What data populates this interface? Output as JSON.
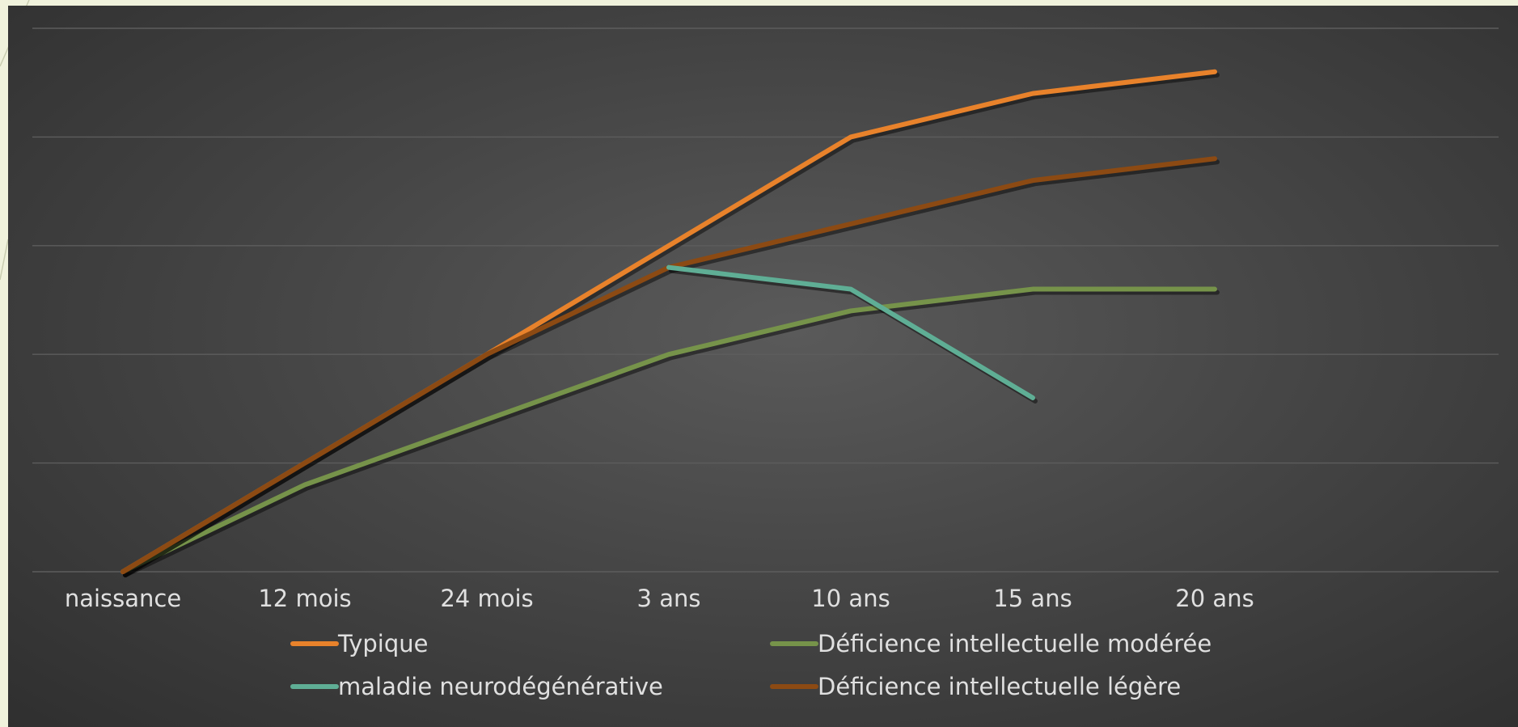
{
  "chart_data": {
    "type": "line",
    "categories": [
      "naissance",
      "12 mois",
      "24 mois",
      "3 ans",
      "10 ans",
      "15 ans",
      "20 ans"
    ],
    "ylim": [
      0,
      5
    ],
    "grid": true,
    "legend_placement": "bottom",
    "series": [
      {
        "name": "Typique",
        "color": "#e8822b",
        "values": [
          0,
          1,
          2,
          3,
          4,
          4.4,
          4.6
        ]
      },
      {
        "name": "Déficience intellectuelle modérée",
        "color": "#76934a",
        "values": [
          0,
          0.8,
          1.4,
          2,
          2.4,
          2.6,
          2.6
        ]
      },
      {
        "name": "maladie neurodégénérative",
        "color": "#5fae95",
        "values": [
          null,
          null,
          null,
          2.8,
          2.6,
          1.6,
          null
        ]
      },
      {
        "name": "Déficience intellectuelle légère",
        "color": "#8c4a13",
        "values": [
          0,
          1,
          2,
          2.8,
          3.2,
          3.6,
          3.8
        ]
      }
    ]
  }
}
